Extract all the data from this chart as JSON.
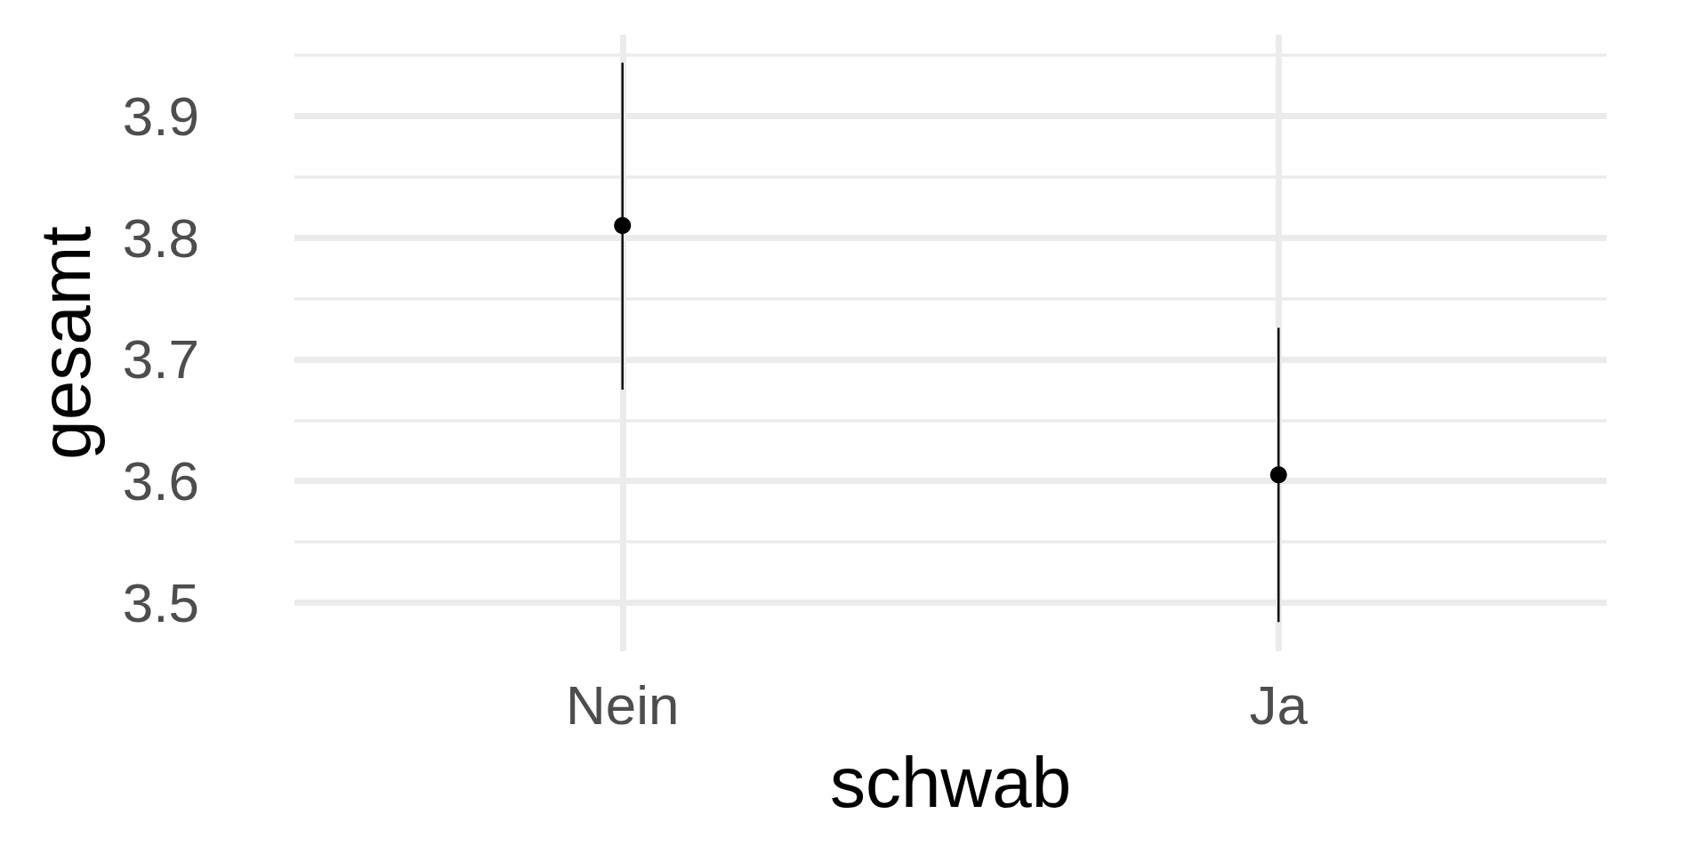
{
  "chart_data": {
    "type": "scatter",
    "xlabel": "schwab",
    "ylabel": "gesamt",
    "categories": [
      "Nein",
      "Ja"
    ],
    "values": [
      3.81,
      3.605
    ],
    "color": "#000000",
    "marker": "circle",
    "errors": [
      [
        3.675,
        3.944
      ],
      [
        3.484,
        3.726
      ]
    ],
    "ylim": [
      3.46,
      3.967
    ],
    "yticks": [
      3.5,
      {
        "value": 3.55,
        "label": null
      },
      3.6,
      {
        "value": 3.65,
        "label": null
      },
      3.7,
      {
        "value": 3.75,
        "label": null
      },
      3.8,
      {
        "value": 3.85,
        "label": null
      },
      3.9,
      {
        "value": 3.95,
        "label": null
      }
    ],
    "grid": true
  }
}
